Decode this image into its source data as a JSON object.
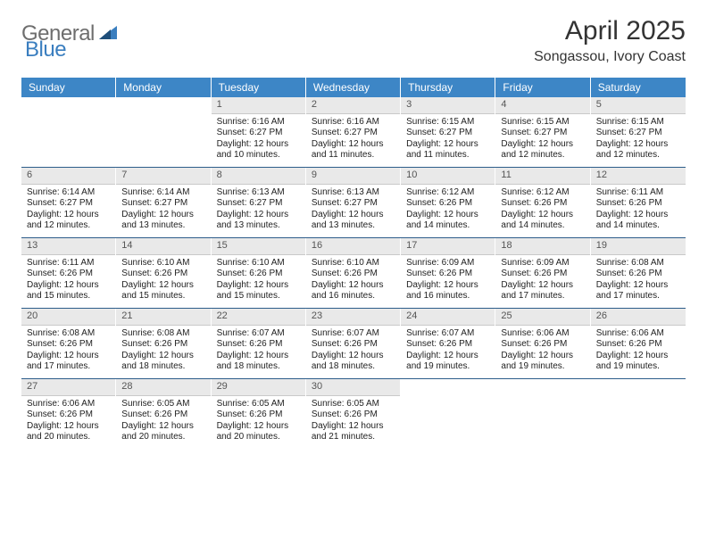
{
  "logo": {
    "general": "General",
    "blue": "Blue"
  },
  "title": "April 2025",
  "location": "Songassou, Ivory Coast",
  "colors": {
    "header_bg": "#3d86c6",
    "header_text": "#ffffff",
    "daynum_bg": "#e9e9e9",
    "daynum_text": "#555555",
    "text": "#222222",
    "sep": "#2d5d8a",
    "logo_grey": "#6e6e6e",
    "logo_blue": "#3a7ebf"
  },
  "daynames": [
    "Sunday",
    "Monday",
    "Tuesday",
    "Wednesday",
    "Thursday",
    "Friday",
    "Saturday"
  ],
  "weeks": [
    [
      null,
      null,
      {
        "n": "1",
        "sr": "6:16 AM",
        "ss": "6:27 PM",
        "dl": "12 hours and 10 minutes."
      },
      {
        "n": "2",
        "sr": "6:16 AM",
        "ss": "6:27 PM",
        "dl": "12 hours and 11 minutes."
      },
      {
        "n": "3",
        "sr": "6:15 AM",
        "ss": "6:27 PM",
        "dl": "12 hours and 11 minutes."
      },
      {
        "n": "4",
        "sr": "6:15 AM",
        "ss": "6:27 PM",
        "dl": "12 hours and 12 minutes."
      },
      {
        "n": "5",
        "sr": "6:15 AM",
        "ss": "6:27 PM",
        "dl": "12 hours and 12 minutes."
      }
    ],
    [
      {
        "n": "6",
        "sr": "6:14 AM",
        "ss": "6:27 PM",
        "dl": "12 hours and 12 minutes."
      },
      {
        "n": "7",
        "sr": "6:14 AM",
        "ss": "6:27 PM",
        "dl": "12 hours and 13 minutes."
      },
      {
        "n": "8",
        "sr": "6:13 AM",
        "ss": "6:27 PM",
        "dl": "12 hours and 13 minutes."
      },
      {
        "n": "9",
        "sr": "6:13 AM",
        "ss": "6:27 PM",
        "dl": "12 hours and 13 minutes."
      },
      {
        "n": "10",
        "sr": "6:12 AM",
        "ss": "6:26 PM",
        "dl": "12 hours and 14 minutes."
      },
      {
        "n": "11",
        "sr": "6:12 AM",
        "ss": "6:26 PM",
        "dl": "12 hours and 14 minutes."
      },
      {
        "n": "12",
        "sr": "6:11 AM",
        "ss": "6:26 PM",
        "dl": "12 hours and 14 minutes."
      }
    ],
    [
      {
        "n": "13",
        "sr": "6:11 AM",
        "ss": "6:26 PM",
        "dl": "12 hours and 15 minutes."
      },
      {
        "n": "14",
        "sr": "6:10 AM",
        "ss": "6:26 PM",
        "dl": "12 hours and 15 minutes."
      },
      {
        "n": "15",
        "sr": "6:10 AM",
        "ss": "6:26 PM",
        "dl": "12 hours and 15 minutes."
      },
      {
        "n": "16",
        "sr": "6:10 AM",
        "ss": "6:26 PM",
        "dl": "12 hours and 16 minutes."
      },
      {
        "n": "17",
        "sr": "6:09 AM",
        "ss": "6:26 PM",
        "dl": "12 hours and 16 minutes."
      },
      {
        "n": "18",
        "sr": "6:09 AM",
        "ss": "6:26 PM",
        "dl": "12 hours and 17 minutes."
      },
      {
        "n": "19",
        "sr": "6:08 AM",
        "ss": "6:26 PM",
        "dl": "12 hours and 17 minutes."
      }
    ],
    [
      {
        "n": "20",
        "sr": "6:08 AM",
        "ss": "6:26 PM",
        "dl": "12 hours and 17 minutes."
      },
      {
        "n": "21",
        "sr": "6:08 AM",
        "ss": "6:26 PM",
        "dl": "12 hours and 18 minutes."
      },
      {
        "n": "22",
        "sr": "6:07 AM",
        "ss": "6:26 PM",
        "dl": "12 hours and 18 minutes."
      },
      {
        "n": "23",
        "sr": "6:07 AM",
        "ss": "6:26 PM",
        "dl": "12 hours and 18 minutes."
      },
      {
        "n": "24",
        "sr": "6:07 AM",
        "ss": "6:26 PM",
        "dl": "12 hours and 19 minutes."
      },
      {
        "n": "25",
        "sr": "6:06 AM",
        "ss": "6:26 PM",
        "dl": "12 hours and 19 minutes."
      },
      {
        "n": "26",
        "sr": "6:06 AM",
        "ss": "6:26 PM",
        "dl": "12 hours and 19 minutes."
      }
    ],
    [
      {
        "n": "27",
        "sr": "6:06 AM",
        "ss": "6:26 PM",
        "dl": "12 hours and 20 minutes."
      },
      {
        "n": "28",
        "sr": "6:05 AM",
        "ss": "6:26 PM",
        "dl": "12 hours and 20 minutes."
      },
      {
        "n": "29",
        "sr": "6:05 AM",
        "ss": "6:26 PM",
        "dl": "12 hours and 20 minutes."
      },
      {
        "n": "30",
        "sr": "6:05 AM",
        "ss": "6:26 PM",
        "dl": "12 hours and 21 minutes."
      },
      null,
      null,
      null
    ]
  ],
  "labels": {
    "sunrise": "Sunrise:",
    "sunset": "Sunset:",
    "daylight": "Daylight:"
  }
}
